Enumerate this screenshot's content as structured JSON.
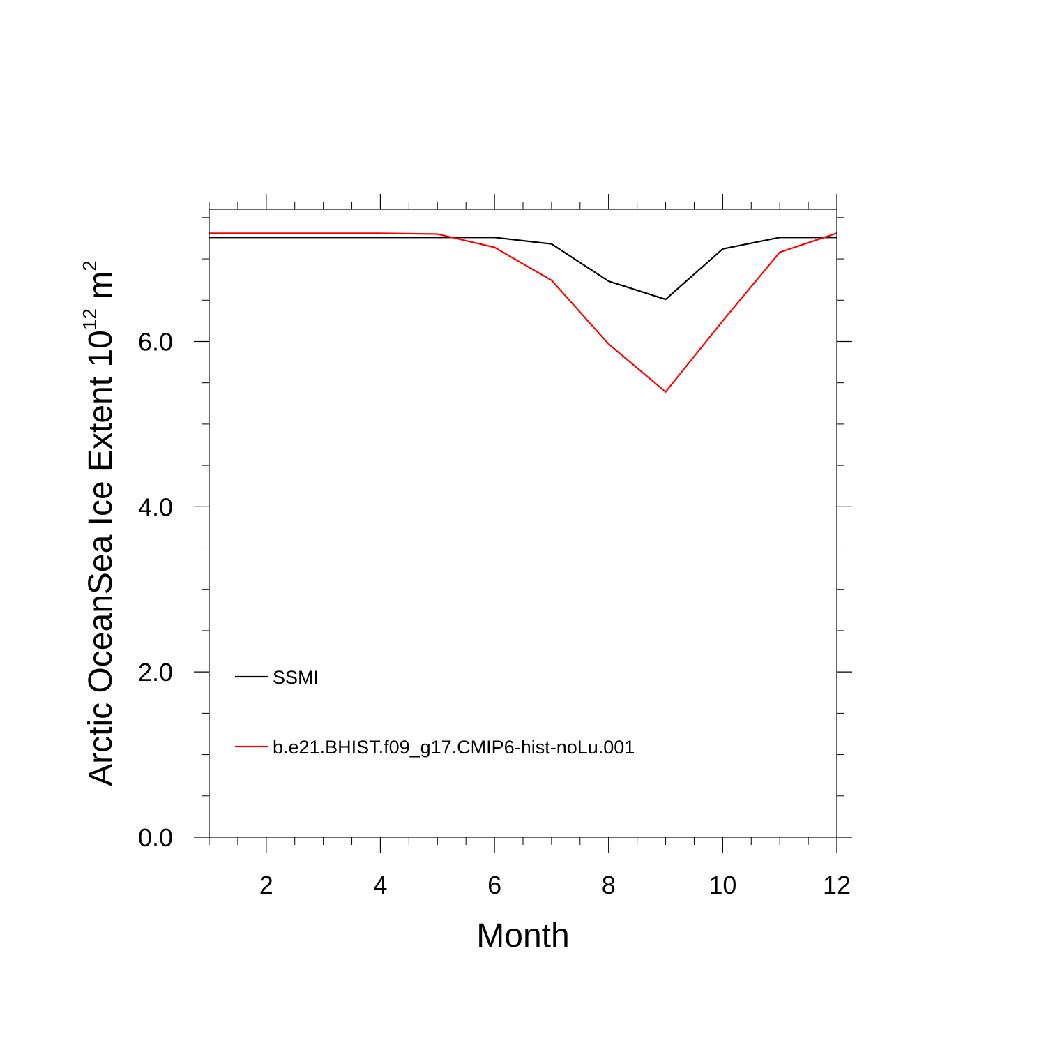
{
  "chart_data": {
    "type": "line",
    "xlabel": "Month",
    "ylabel": {
      "text": "Arctic OceanSea Ice Extent 10",
      "exponent": "12",
      "unit": "m",
      "unit_exponent": "2"
    },
    "xlim": [
      1,
      12
    ],
    "ylim": [
      0,
      7.6
    ],
    "x_ticks": [
      2,
      4,
      6,
      8,
      10,
      12
    ],
    "x_tick_labels": [
      "2",
      "4",
      "6",
      "8",
      "10",
      "12"
    ],
    "y_ticks": [
      0,
      2,
      4,
      6
    ],
    "y_tick_labels": [
      "0.0",
      "2.0",
      "4.0",
      "6.0"
    ],
    "x_minor_step": 0.5,
    "y_minor_step": 0.5,
    "grid": false,
    "legend_position": "lower-left",
    "x": [
      1,
      2,
      3,
      4,
      5,
      6,
      7,
      8,
      9,
      10,
      11,
      12
    ],
    "series": [
      {
        "name": "SSMI",
        "color": "#000000",
        "values": [
          7.26,
          7.26,
          7.26,
          7.26,
          7.26,
          7.26,
          7.18,
          6.73,
          6.51,
          7.12,
          7.26,
          7.26
        ]
      },
      {
        "name": "b.e21.BHIST.f09_g17.CMIP6-hist-noLu.001",
        "color": "#ff0000",
        "values": [
          7.31,
          7.31,
          7.31,
          7.31,
          7.3,
          7.14,
          6.74,
          5.97,
          5.39,
          6.25,
          7.08,
          7.31
        ]
      }
    ]
  }
}
